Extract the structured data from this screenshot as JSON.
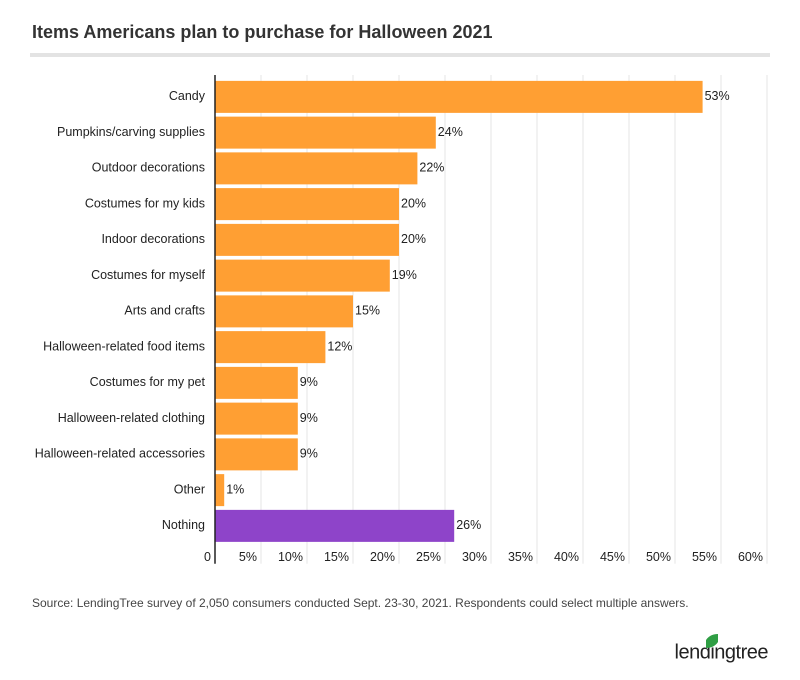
{
  "chart_data": {
    "type": "barh",
    "title": "Items Americans plan to purchase for Halloween 2021",
    "categories": [
      "Candy",
      "Pumpkins/carving supplies",
      "Outdoor decorations",
      "Costumes for my kids",
      "Indoor decorations",
      "Costumes for myself",
      "Arts and crafts",
      "Halloween-related food items",
      "Costumes for my pet",
      "Halloween-related clothing",
      "Halloween-related accessories",
      "Other",
      "Nothing"
    ],
    "values": [
      53,
      24,
      22,
      20,
      20,
      19,
      15,
      12,
      9,
      9,
      9,
      1,
      26
    ],
    "value_labels": [
      "53%",
      "24%",
      "22%",
      "20%",
      "20%",
      "19%",
      "15%",
      "12%",
      "9%",
      "9%",
      "9%",
      "1%",
      "26%"
    ],
    "colors": [
      "#ff9f33",
      "#ff9f33",
      "#ff9f33",
      "#ff9f33",
      "#ff9f33",
      "#ff9f33",
      "#ff9f33",
      "#ff9f33",
      "#ff9f33",
      "#ff9f33",
      "#ff9f33",
      "#ff9f33",
      "#8e44c9"
    ],
    "xlim": [
      0,
      60
    ],
    "xticks": [
      0,
      {
        "value": 5,
        "label": "5%"
      },
      {
        "value": 10,
        "label": "10%"
      },
      {
        "value": 15,
        "label": "15%"
      },
      {
        "value": 20,
        "label": "20%"
      },
      {
        "value": 25,
        "label": "25%"
      },
      {
        "value": 30,
        "label": "30%"
      },
      {
        "value": 35,
        "label": "35%"
      },
      {
        "value": 40,
        "label": "40%"
      },
      {
        "value": 45,
        "label": "45%"
      },
      {
        "value": 50,
        "label": "50%"
      },
      {
        "value": 55,
        "label": "55%"
      },
      {
        "value": 60,
        "label": "60%"
      }
    ],
    "grid": true,
    "source": "Source: LendingTree survey of 2,050 consumers conducted Sept. 23-30, 2021. Respondents could select multiple answers.",
    "logo": "lendingtree"
  }
}
